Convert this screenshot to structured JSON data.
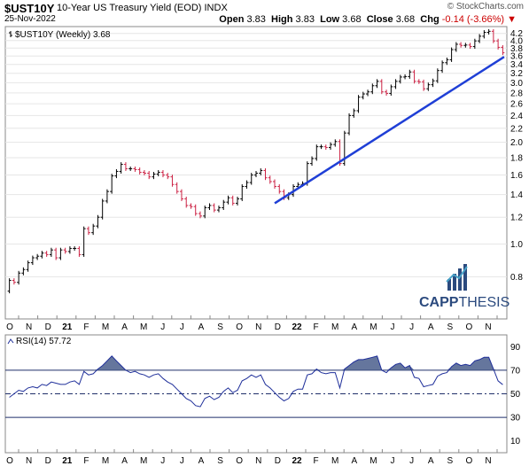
{
  "header": {
    "symbol": "$UST10Y",
    "description": "10-Year US Treasury Yield (EOD)",
    "exchange": "INDX",
    "date": "25-Nov-2022",
    "brand": "© StockCharts.com",
    "open_label": "Open",
    "open": "3.83",
    "high_label": "High",
    "high": "3.83",
    "low_label": "Low",
    "low": "3.68",
    "close_label": "Close",
    "close": "3.68",
    "chg_label": "Chg",
    "chg": "-0.14 (-3.66%)",
    "chg_marker": "▼"
  },
  "watermark": {
    "brand_bold": "CAPP",
    "brand_rest": "THESIS"
  },
  "colors": {
    "up": "#000000",
    "down": "#cc2244",
    "trend": "#1f3fd6",
    "rsi_line": "#1f2f9a",
    "rsi_fill": "#4a5e8c",
    "neg": "#cc0000",
    "logo": "#2b4a7e"
  },
  "chart_data": [
    {
      "type": "ohlc",
      "legend": "$UST10Y (Weekly) 3.68",
      "y_scale": "log",
      "ylim": [
        0.6,
        4.4
      ],
      "y_ticks": [
        4.2,
        4.0,
        3.8,
        3.6,
        3.4,
        3.2,
        3.0,
        2.8,
        2.6,
        2.4,
        2.2,
        2.0,
        1.8,
        1.6,
        1.4,
        1.2,
        1.0,
        0.8
      ],
      "x_labels": [
        "O",
        "N",
        "D",
        "21",
        "F",
        "M",
        "A",
        "M",
        "J",
        "J",
        "A",
        "S",
        "O",
        "N",
        "D",
        "22",
        "F",
        "M",
        "A",
        "M",
        "J",
        "J",
        "A",
        "S",
        "O",
        "N"
      ],
      "bar_interval": "weekly",
      "closes": [
        0.78,
        0.77,
        0.82,
        0.84,
        0.88,
        0.91,
        0.92,
        0.94,
        0.93,
        0.96,
        0.91,
        0.96,
        0.95,
        0.97,
        0.97,
        0.93,
        1.11,
        1.08,
        1.13,
        1.2,
        1.34,
        1.43,
        1.59,
        1.64,
        1.72,
        1.67,
        1.67,
        1.66,
        1.63,
        1.62,
        1.58,
        1.61,
        1.63,
        1.6,
        1.58,
        1.5,
        1.43,
        1.36,
        1.3,
        1.29,
        1.23,
        1.21,
        1.28,
        1.3,
        1.26,
        1.28,
        1.33,
        1.37,
        1.32,
        1.36,
        1.48,
        1.52,
        1.6,
        1.62,
        1.65,
        1.57,
        1.53,
        1.48,
        1.43,
        1.37,
        1.4,
        1.48,
        1.5,
        1.51,
        1.73,
        1.79,
        1.94,
        1.94,
        1.93,
        1.97,
        2.01,
        1.73,
        2.13,
        2.4,
        2.48,
        2.72,
        2.78,
        2.82,
        2.94,
        3.03,
        2.82,
        2.79,
        2.92,
        3.03,
        3.12,
        3.13,
        3.23,
        3.03,
        3.02,
        2.88,
        2.96,
        3.04,
        3.26,
        3.44,
        3.51,
        3.76,
        3.9,
        3.87,
        3.88,
        3.84,
        3.99,
        4.12,
        4.23,
        4.26,
        3.99,
        3.82,
        3.68
      ],
      "trendline": {
        "from": [
          1.36,
          1.86
        ],
        "to": [
          3.58,
          4.1
        ],
        "note_units": "x as weekly bar index, y in percent"
      },
      "up_down_coloring": true
    },
    {
      "type": "line",
      "legend": "RSI(14) 57.72",
      "ylim": [
        0,
        100
      ],
      "y_ticks": [
        90,
        70,
        50,
        30,
        10
      ],
      "reference_lines": [
        70,
        50,
        30
      ],
      "x_labels": [
        "O",
        "N",
        "D",
        "21",
        "F",
        "M",
        "A",
        "M",
        "J",
        "J",
        "A",
        "S",
        "O",
        "N",
        "D",
        "22",
        "F",
        "M",
        "A",
        "M",
        "J",
        "J",
        "A",
        "S",
        "O",
        "N"
      ],
      "series": [
        {
          "values": [
            47,
            50,
            53,
            52,
            55,
            56,
            55,
            58,
            57,
            60,
            59,
            58,
            58,
            60,
            61,
            58,
            69,
            66,
            67,
            71,
            74,
            78,
            82,
            78,
            74,
            70,
            68,
            69,
            67,
            66,
            64,
            66,
            67,
            63,
            60,
            58,
            54,
            50,
            46,
            44,
            40,
            39,
            46,
            48,
            45,
            47,
            52,
            55,
            51,
            53,
            61,
            63,
            66,
            64,
            66,
            58,
            55,
            51,
            47,
            44,
            46,
            52,
            54,
            54,
            66,
            67,
            71,
            68,
            67,
            68,
            68,
            55,
            71,
            74,
            77,
            79,
            79,
            80,
            81,
            82,
            70,
            68,
            72,
            75,
            76,
            72,
            74,
            64,
            63,
            56,
            57,
            58,
            65,
            67,
            68,
            73,
            76,
            74,
            75,
            74,
            78,
            79,
            81,
            81,
            71,
            61,
            57.72
          ]
        }
      ]
    }
  ]
}
